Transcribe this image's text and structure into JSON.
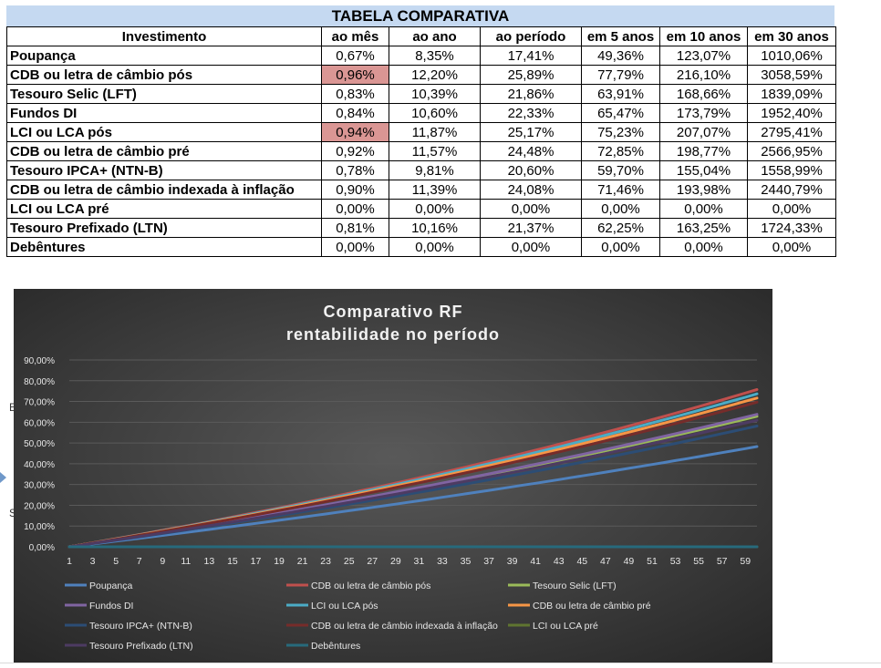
{
  "table": {
    "title": "TABELA COMPARATIVA",
    "columns": [
      "Investimento",
      "ao mês",
      "ao ano",
      "ao período",
      "em 5 anos",
      "em 10 anos",
      "em 30 anos"
    ],
    "highlight_color": "#da9694",
    "header_band_color": "#c5d9f1",
    "rows": [
      {
        "name": "Poupança",
        "values": [
          "0,67%",
          "8,35%",
          "17,41%",
          "49,36%",
          "123,07%",
          "1010,06%"
        ],
        "highlight": false
      },
      {
        "name": "CDB ou letra de câmbio pós",
        "values": [
          "0,96%",
          "12,20%",
          "25,89%",
          "77,79%",
          "216,10%",
          "3058,59%"
        ],
        "highlight": true
      },
      {
        "name": "Tesouro Selic (LFT)",
        "values": [
          "0,83%",
          "10,39%",
          "21,86%",
          "63,91%",
          "168,66%",
          "1839,09%"
        ],
        "highlight": false
      },
      {
        "name": "Fundos DI",
        "values": [
          "0,84%",
          "10,60%",
          "22,33%",
          "65,47%",
          "173,79%",
          "1952,40%"
        ],
        "highlight": false
      },
      {
        "name": "LCI ou LCA pós",
        "values": [
          "0,94%",
          "11,87%",
          "25,17%",
          "75,23%",
          "207,07%",
          "2795,41%"
        ],
        "highlight": true
      },
      {
        "name": "CDB ou letra de câmbio pré",
        "values": [
          "0,92%",
          "11,57%",
          "24,48%",
          "72,85%",
          "198,77%",
          "2566,95%"
        ],
        "highlight": false
      },
      {
        "name": "Tesouro IPCA+ (NTN-B)",
        "values": [
          "0,78%",
          "9,81%",
          "20,60%",
          "59,70%",
          "155,04%",
          "1558,99%"
        ],
        "highlight": false
      },
      {
        "name": "CDB ou letra de câmbio indexada à inflação",
        "values": [
          "0,90%",
          "11,39%",
          "24,08%",
          "71,46%",
          "193,98%",
          "2440,79%"
        ],
        "highlight": false
      },
      {
        "name": "LCI ou LCA pré",
        "values": [
          "0,00%",
          "0,00%",
          "0,00%",
          "0,00%",
          "0,00%",
          "0,00%"
        ],
        "highlight": false
      },
      {
        "name": "Tesouro Prefixado (LTN)",
        "values": [
          "0,81%",
          "10,16%",
          "21,37%",
          "62,25%",
          "163,25%",
          "1724,33%"
        ],
        "highlight": false
      },
      {
        "name": "Debêntures",
        "values": [
          "0,00%",
          "0,00%",
          "0,00%",
          "0,00%",
          "0,00%",
          "0,00%"
        ],
        "highlight": false
      }
    ]
  },
  "edge_glyphs": [
    "E",
    "S"
  ],
  "chart_data": {
    "type": "line",
    "title": "Comparativo RF",
    "subtitle": "rentabilidade no período",
    "background": "#404040",
    "x_ticks": [
      1,
      3,
      5,
      7,
      9,
      11,
      13,
      15,
      17,
      19,
      21,
      23,
      25,
      27,
      29,
      31,
      33,
      35,
      37,
      39,
      41,
      43,
      45,
      47,
      49,
      51,
      53,
      55,
      57,
      59
    ],
    "x_range": [
      1,
      60
    ],
    "y_tick_labels": [
      "0,00%",
      "10,00%",
      "20,00%",
      "30,00%",
      "40,00%",
      "50,00%",
      "60,00%",
      "70,00%",
      "80,00%",
      "90,00%"
    ],
    "ylim": [
      0,
      90
    ],
    "grid": true,
    "legend_position": "bottom",
    "series": [
      {
        "name": "Poupança",
        "color": "#4f81bd",
        "monthly_rate": 0.67
      },
      {
        "name": "CDB ou letra de câmbio pós",
        "color": "#c0504d",
        "monthly_rate": 0.96
      },
      {
        "name": "Tesouro Selic (LFT)",
        "color": "#9bbb59",
        "monthly_rate": 0.83
      },
      {
        "name": "Fundos DI",
        "color": "#8064a2",
        "monthly_rate": 0.84
      },
      {
        "name": "LCI ou LCA pós",
        "color": "#4bacc6",
        "monthly_rate": 0.94
      },
      {
        "name": "CDB ou letra de câmbio pré",
        "color": "#f79646",
        "monthly_rate": 0.92
      },
      {
        "name": "Tesouro IPCA+ (NTN-B)",
        "color": "#2c4d75",
        "monthly_rate": 0.78
      },
      {
        "name": "CDB ou letra de câmbio indexada à inflação",
        "color": "#772c2a",
        "monthly_rate": 0.9
      },
      {
        "name": "LCI ou LCA pré",
        "color": "#5f7530",
        "monthly_rate": 0.0
      },
      {
        "name": "Tesouro Prefixado (LTN)",
        "color": "#4d3b62",
        "monthly_rate": 0.81
      },
      {
        "name": "Debêntures",
        "color": "#276a7c",
        "monthly_rate": 0.0
      }
    ]
  }
}
